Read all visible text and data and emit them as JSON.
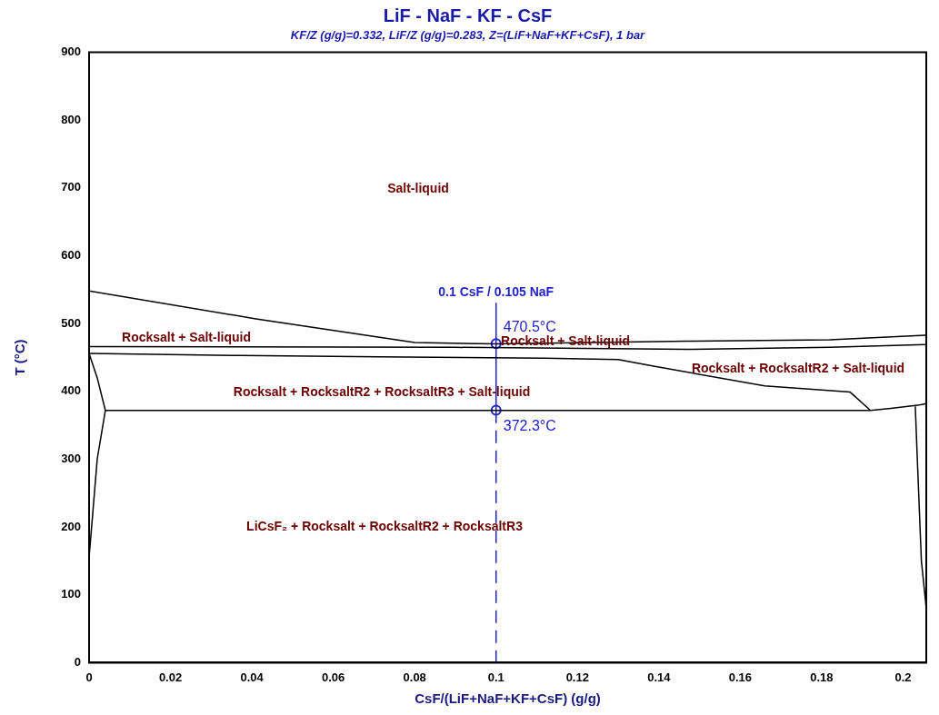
{
  "chart_data": {
    "type": "line",
    "title": "LiF - NaF - KF - CsF",
    "subtitle": "KF/Z (g/g)=0.332, LiF/Z (g/g)=0.283, Z=(LiF+NaF+KF+CsF), 1 bar",
    "xlabel": "CsF/(LiF+NaF+KF+CsF) (g/g)",
    "ylabel": "T (°C)",
    "xlim": [
      0,
      0.2057
    ],
    "xticks": [
      0,
      0.02,
      0.04,
      0.06,
      0.08,
      0.1,
      0.12,
      0.14,
      0.16,
      0.18,
      0.2
    ],
    "ylim": [
      0,
      900
    ],
    "yticks": [
      0,
      100,
      200,
      300,
      400,
      500,
      600,
      700,
      800,
      900
    ],
    "grid": false,
    "legend": false,
    "marker": "none",
    "line_style": "solid",
    "series": [
      {
        "color": "#000000",
        "x": [
          0,
          0.041,
          0.08,
          0.1,
          0.147,
          0.182,
          0.2057
        ],
        "values": [
          548,
          507,
          472,
          470,
          474,
          476,
          483
        ]
      },
      {
        "color": "#000000",
        "x": [
          0,
          0.09,
          0.147,
          0.182,
          0.2057
        ],
        "values": [
          466,
          465,
          462,
          465,
          469
        ]
      },
      {
        "color": "#000000",
        "x": [
          0,
          0.037,
          0.071,
          0.112,
          0.13,
          0.139,
          0.166,
          0.187,
          0.192
        ],
        "values": [
          456,
          453,
          451,
          449,
          447,
          437,
          408,
          399,
          372
        ]
      },
      {
        "color": "#000000",
        "x": [
          0.004,
          0.192,
          0.197,
          0.204,
          0.2057
        ],
        "values": [
          372,
          372,
          375,
          380,
          382
        ]
      },
      {
        "color": "#000000",
        "x": [
          0,
          0.002,
          0.004,
          0.002,
          0
        ],
        "values": [
          456,
          420,
          372,
          300,
          155
        ]
      },
      {
        "color": "#000000",
        "x": [
          0.203,
          0.2035,
          0.2045,
          0.2057
        ],
        "values": [
          378,
          300,
          150,
          80
        ]
      },
      {
        "name": "0.1 CsF / 0.105 NaF",
        "color": "#2222cc",
        "x": [
          0.1,
          0.1
        ],
        "values": [
          530,
          372
        ]
      },
      {
        "color": "#2222cc",
        "line_style": "dashed",
        "x": [
          0.1,
          0.1
        ],
        "values": [
          372,
          0
        ]
      },
      {
        "type": "scatter",
        "marker": "circle",
        "color": "#2222cc",
        "x": [
          0.1,
          0.1
        ],
        "values": [
          470.5,
          372.3
        ],
        "value_labels": [
          "470.5°C",
          "372.3°C"
        ]
      }
    ],
    "annotations": [
      "Salt-liquid",
      "Rocksalt + Salt-liquid",
      "Rocksalt + Salt-liquid",
      "Rocksalt + RocksaltR2 + Salt-liquid",
      "Rocksalt + RocksaltR2 + RocksaltR3 + Salt-liquid",
      "LiCsF₂ + Rocksalt + RocksaltR2 + RocksaltR3"
    ]
  }
}
